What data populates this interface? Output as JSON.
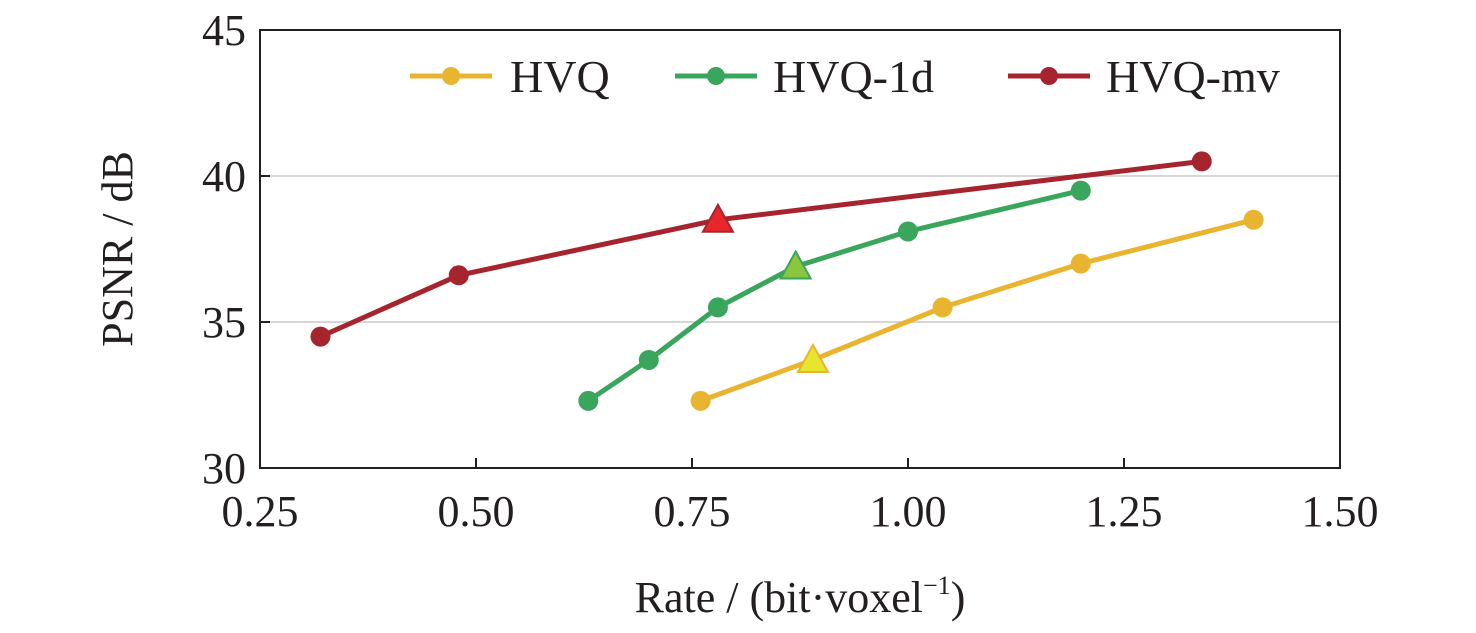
{
  "chart_data": {
    "type": "line",
    "xlabel": "Rate / (bit·voxel",
    "xlabel_superscript": "−1",
    "xlabel_close": ")",
    "ylabel": "PSNR / dB",
    "xlim": [
      0.25,
      1.5
    ],
    "ylim": [
      30,
      45
    ],
    "x_ticks": [
      "0.25",
      "0.50",
      "0.75",
      "1.00",
      "1.25",
      "1.50"
    ],
    "y_ticks": [
      "30",
      "35",
      "40",
      "45"
    ],
    "grid": "horizontal",
    "legend_position": "top-right",
    "series": [
      {
        "name": "HVQ",
        "color": "#e9b530",
        "highlight_color": "#e7e62d",
        "x": [
          0.76,
          0.89,
          1.04,
          1.2,
          1.4
        ],
        "y": [
          32.3,
          33.7,
          35.5,
          37.0,
          38.5
        ],
        "highlight_index": 1
      },
      {
        "name": "HVQ-1d",
        "color": "#3aa55c",
        "highlight_color": "#8cc63f",
        "x": [
          0.63,
          0.7,
          0.78,
          0.87,
          1.0,
          1.2
        ],
        "y": [
          32.3,
          33.7,
          35.5,
          36.9,
          38.1,
          39.5
        ],
        "highlight_index": 3
      },
      {
        "name": "HVQ-mv",
        "color": "#a6242e",
        "highlight_color": "#e8262c",
        "x": [
          0.32,
          0.48,
          0.78,
          1.34
        ],
        "y": [
          34.5,
          36.6,
          38.5,
          40.5
        ],
        "highlight_index": 2
      }
    ]
  }
}
